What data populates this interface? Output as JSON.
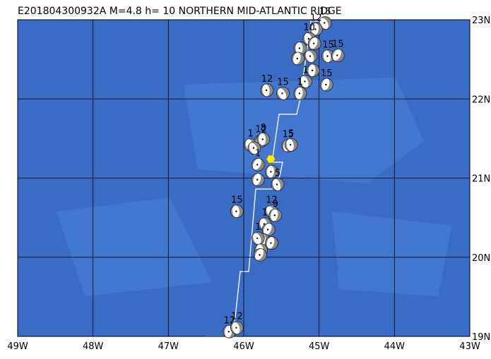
{
  "title": "E201804300932A  M=4.8  h= 10  NORTHERN MID-ATLANTIC RIDGE",
  "lonlim": [
    -49,
    -43
  ],
  "latlim": [
    19,
    23
  ],
  "lonticks": [
    {
      "value": -49,
      "label": "49W"
    },
    {
      "value": -48,
      "label": "48W"
    },
    {
      "value": -47,
      "label": "47W"
    },
    {
      "value": -46,
      "label": "46W"
    },
    {
      "value": -45,
      "label": "45W"
    },
    {
      "value": -44,
      "label": "44W"
    },
    {
      "value": -43,
      "label": "43W"
    }
  ],
  "latticks": [
    {
      "value": 23,
      "label": "23N"
    },
    {
      "value": 22,
      "label": "22N"
    },
    {
      "value": 21,
      "label": "21N"
    },
    {
      "value": 20,
      "label": "20N"
    },
    {
      "value": 19,
      "label": "19N"
    }
  ],
  "epicenter": {
    "lon": -45.64,
    "lat": 21.24
  },
  "events": [
    {
      "lon": -44.92,
      "lat": 22.96,
      "depth": 15
    },
    {
      "lon": -45.04,
      "lat": 22.88,
      "depth": 12
    },
    {
      "lon": -45.13,
      "lat": 22.76,
      "depth": 10
    },
    {
      "lon": -45.06,
      "lat": 22.7
    },
    {
      "lon": -45.25,
      "lat": 22.64
    },
    {
      "lon": -45.11,
      "lat": 22.54
    },
    {
      "lon": -45.28,
      "lat": 22.51
    },
    {
      "lon": -44.88,
      "lat": 22.54,
      "depth": 15
    },
    {
      "lon": -44.75,
      "lat": 22.55,
      "depth": 15
    },
    {
      "lon": -45.08,
      "lat": 22.36
    },
    {
      "lon": -45.18,
      "lat": 22.22,
      "depth": 1
    },
    {
      "lon": -44.9,
      "lat": 22.18,
      "depth": 15
    },
    {
      "lon": -45.69,
      "lat": 22.11,
      "depth": 12
    },
    {
      "lon": -45.48,
      "lat": 22.07,
      "depth": 15
    },
    {
      "lon": -45.25,
      "lat": 22.07,
      "depth": 1
    },
    {
      "lon": -45.91,
      "lat": 21.42,
      "depth": 1
    },
    {
      "lon": -45.77,
      "lat": 21.47,
      "depth": 12
    },
    {
      "lon": -45.74,
      "lat": 21.49,
      "depth": 8
    },
    {
      "lon": -45.86,
      "lat": 21.38
    },
    {
      "lon": -45.41,
      "lat": 21.41,
      "depth": 15
    },
    {
      "lon": -45.37,
      "lat": 21.42,
      "depth": 5
    },
    {
      "lon": -45.81,
      "lat": 21.17,
      "depth": 1
    },
    {
      "lon": -45.63,
      "lat": 21.08
    },
    {
      "lon": -45.55,
      "lat": 20.92,
      "depth": 5
    },
    {
      "lon": -45.81,
      "lat": 20.98
    },
    {
      "lon": -46.09,
      "lat": 20.58,
      "depth": 15
    },
    {
      "lon": -45.63,
      "lat": 20.58,
      "depth": 12
    },
    {
      "lon": -45.58,
      "lat": 20.53,
      "depth": 9
    },
    {
      "lon": -45.72,
      "lat": 20.42,
      "depth": 1
    },
    {
      "lon": -45.67,
      "lat": 20.35
    },
    {
      "lon": -45.74,
      "lat": 20.22
    },
    {
      "lon": -45.81,
      "lat": 20.24,
      "depth": 1
    },
    {
      "lon": -45.63,
      "lat": 20.18
    },
    {
      "lon": -45.77,
      "lat": 20.09
    },
    {
      "lon": -45.78,
      "lat": 20.03
    },
    {
      "lon": -46.19,
      "lat": 19.06,
      "depth": 12
    },
    {
      "lon": -46.09,
      "lat": 19.11,
      "depth": 12
    }
  ]
}
